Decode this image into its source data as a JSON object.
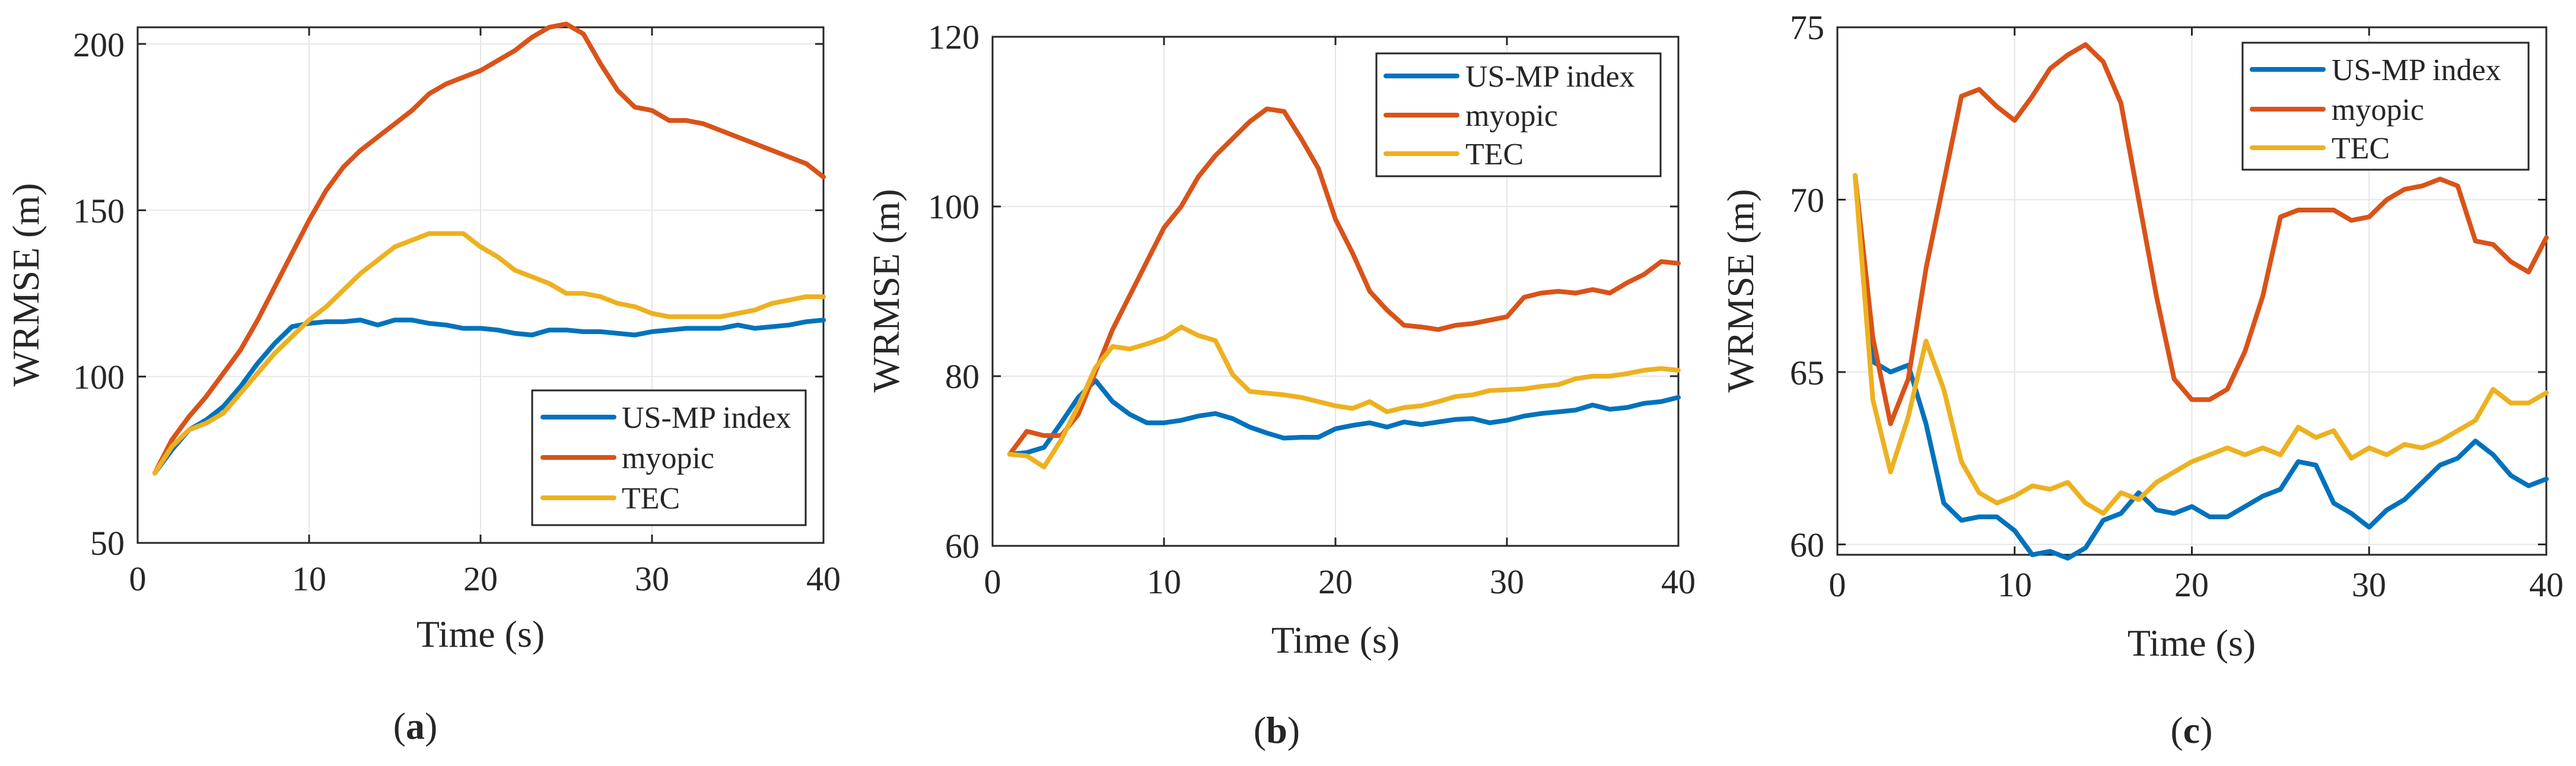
{
  "colors": {
    "us_mp_index": "#0072BD",
    "myopic": "#D95319",
    "tec": "#EDB120"
  },
  "chart_data": [
    {
      "type": "line",
      "id": "a",
      "panel_label": "a",
      "xlabel": "Time (s)",
      "ylabel": "WRMSE (m)",
      "xlim": [
        0,
        40
      ],
      "ylim": [
        50,
        205
      ],
      "xticks": [
        0,
        10,
        20,
        30,
        40
      ],
      "yticks": [
        50,
        100,
        150,
        200
      ],
      "grid": true,
      "legend_position": "bottom-right",
      "x": [
        1,
        2,
        3,
        4,
        5,
        6,
        7,
        8,
        9,
        10,
        11,
        12,
        13,
        14,
        15,
        16,
        17,
        18,
        19,
        20,
        21,
        22,
        23,
        24,
        25,
        26,
        27,
        28,
        29,
        30,
        31,
        32,
        33,
        34,
        35,
        36,
        37,
        38,
        39,
        40
      ],
      "series": [
        {
          "name": "US-MP index",
          "color": "#0072BD",
          "values": [
            71,
            78,
            84,
            87,
            91,
            97,
            104,
            110,
            115,
            116,
            116.5,
            116.5,
            117,
            115.5,
            117,
            117,
            116,
            115.5,
            114.5,
            114.5,
            114,
            113,
            112.5,
            114,
            114,
            113.5,
            113.5,
            113,
            112.5,
            113.5,
            114,
            114.5,
            114.5,
            114.5,
            115.5,
            114.5,
            115,
            115.5,
            116.5,
            117
          ]
        },
        {
          "name": "myopic",
          "color": "#D95319",
          "values": [
            71,
            81,
            88,
            94,
            101,
            108,
            117,
            127,
            137,
            147,
            156,
            163,
            168,
            172,
            176,
            180,
            185,
            188,
            190,
            192,
            195,
            198,
            202,
            205,
            206,
            203,
            194,
            186,
            181,
            180,
            177,
            177,
            176,
            174,
            172,
            170,
            168,
            166,
            164,
            160
          ]
        },
        {
          "name": "TEC",
          "color": "#EDB120",
          "values": [
            71,
            79,
            84,
            86,
            89,
            95,
            101,
            107,
            112,
            117,
            121,
            126,
            131,
            135,
            139,
            141,
            143,
            143,
            143,
            139,
            136,
            132,
            130,
            128,
            125,
            125,
            124,
            122,
            121,
            119,
            118,
            118,
            118,
            118,
            119,
            120,
            122,
            123,
            124,
            124
          ]
        }
      ]
    },
    {
      "type": "line",
      "id": "b",
      "panel_label": "b",
      "xlabel": "Time (s)",
      "ylabel": "WRMSE (m)",
      "xlim": [
        0,
        40
      ],
      "ylim": [
        60,
        120
      ],
      "xticks": [
        0,
        10,
        20,
        30,
        40
      ],
      "yticks": [
        60,
        80,
        100,
        120
      ],
      "grid": true,
      "legend_position": "top-right",
      "x": [
        1,
        2,
        3,
        4,
        5,
        6,
        7,
        8,
        9,
        10,
        11,
        12,
        13,
        14,
        15,
        16,
        17,
        18,
        19,
        20,
        21,
        22,
        23,
        24,
        25,
        26,
        27,
        28,
        29,
        30,
        31,
        32,
        33,
        34,
        35,
        36,
        37,
        38,
        39,
        40
      ],
      "series": [
        {
          "name": "US-MP index",
          "color": "#0072BD",
          "values": [
            70.8,
            71,
            71.6,
            74.5,
            77.5,
            79.5,
            77,
            75.5,
            74.5,
            74.5,
            74.8,
            75.3,
            75.6,
            75,
            74,
            73.3,
            72.7,
            72.8,
            72.8,
            73.8,
            74.2,
            74.5,
            74,
            74.6,
            74.3,
            74.6,
            74.9,
            75,
            74.5,
            74.8,
            75.3,
            75.6,
            75.8,
            76,
            76.6,
            76.1,
            76.3,
            76.8,
            77,
            77.5
          ]
        },
        {
          "name": "myopic",
          "color": "#D95319",
          "values": [
            70.8,
            73.5,
            73,
            73,
            75.5,
            80.5,
            85.5,
            89.5,
            93.5,
            97.5,
            100,
            103.5,
            106,
            108,
            110,
            111.5,
            111.2,
            108,
            104.5,
            98.5,
            94.5,
            90,
            87.8,
            86,
            85.8,
            85.5,
            86,
            86.2,
            86.6,
            87,
            89.3,
            89.8,
            90,
            89.8,
            90.2,
            89.8,
            91,
            92,
            93.5,
            93.3
          ]
        },
        {
          "name": "TEC",
          "color": "#EDB120",
          "values": [
            70.8,
            70.6,
            69.3,
            72.5,
            76.5,
            81,
            83.5,
            83.2,
            83.8,
            84.5,
            85.8,
            84.8,
            84.2,
            80.2,
            78.2,
            78,
            77.8,
            77.5,
            77,
            76.5,
            76.2,
            77,
            75.8,
            76.3,
            76.5,
            77,
            77.6,
            77.8,
            78.3,
            78.4,
            78.5,
            78.8,
            79,
            79.7,
            80,
            80,
            80.3,
            80.7,
            80.9,
            80.7
          ]
        }
      ]
    },
    {
      "type": "line",
      "id": "c",
      "panel_label": "c",
      "xlabel": "Time (s)",
      "ylabel": "WRMSE (m)",
      "xlim": [
        0,
        40
      ],
      "ylim": [
        59.7,
        75
      ],
      "xticks": [
        0,
        10,
        20,
        30,
        40
      ],
      "yticks": [
        60,
        65,
        70,
        75
      ],
      "grid": true,
      "legend_position": "top-right",
      "x": [
        1,
        2,
        3,
        4,
        5,
        6,
        7,
        8,
        9,
        10,
        11,
        12,
        13,
        14,
        15,
        16,
        17,
        18,
        19,
        20,
        21,
        22,
        23,
        24,
        25,
        26,
        27,
        28,
        29,
        30,
        31,
        32,
        33,
        34,
        35,
        36,
        37,
        38,
        39,
        40
      ],
      "series": [
        {
          "name": "US-MP index",
          "color": "#0072BD",
          "values": [
            70.7,
            65.3,
            65,
            65.2,
            63.5,
            61.2,
            60.7,
            60.8,
            60.8,
            60.4,
            59.7,
            59.8,
            59.6,
            59.9,
            60.7,
            60.9,
            61.5,
            61,
            60.9,
            61.1,
            60.8,
            60.8,
            61.1,
            61.4,
            61.6,
            62.4,
            62.3,
            61.2,
            60.9,
            60.5,
            61,
            61.3,
            61.8,
            62.3,
            62.5,
            63,
            62.6,
            62,
            61.7,
            61.9
          ]
        },
        {
          "name": "myopic",
          "color": "#D95319",
          "values": [
            70.7,
            66,
            63.5,
            64.8,
            68,
            70.5,
            73,
            73.2,
            72.7,
            72.3,
            73,
            73.8,
            74.2,
            74.5,
            74,
            72.8,
            70,
            67.2,
            64.8,
            64.2,
            64.2,
            64.5,
            65.6,
            67.2,
            69.5,
            69.7,
            69.7,
            69.7,
            69.4,
            69.5,
            70,
            70.3,
            70.4,
            70.6,
            70.4,
            68.8,
            68.7,
            68.2,
            67.9,
            68.9
          ]
        },
        {
          "name": "TEC",
          "color": "#EDB120",
          "values": [
            70.7,
            64.2,
            62.1,
            63.7,
            65.9,
            64.5,
            62.4,
            61.5,
            61.2,
            61.4,
            61.7,
            61.6,
            61.8,
            61.2,
            60.9,
            61.5,
            61.3,
            61.8,
            62.1,
            62.4,
            62.6,
            62.8,
            62.6,
            62.8,
            62.6,
            63.4,
            63.1,
            63.3,
            62.5,
            62.8,
            62.6,
            62.9,
            62.8,
            63,
            63.3,
            63.6,
            64.5,
            64.1,
            64.1,
            64.4
          ]
        }
      ]
    }
  ]
}
